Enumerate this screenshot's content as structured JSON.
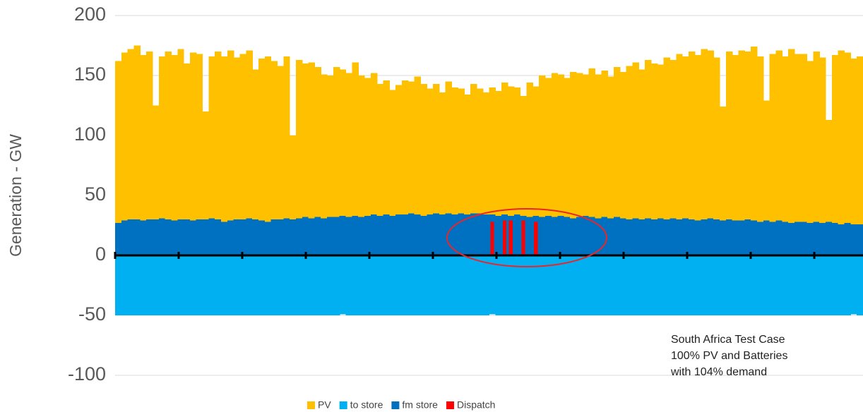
{
  "chart_data": {
    "type": "bar",
    "stacked": true,
    "y_label": "Generation - GW",
    "annotation": [
      "South Africa Test Case",
      "100% PV and Batteries",
      "with 104% demand"
    ],
    "categories": [
      null,
      null,
      null,
      null,
      null,
      null,
      null,
      null,
      null,
      null,
      null,
      null,
      null,
      null,
      null,
      null,
      null,
      null,
      null,
      null,
      null,
      null,
      null,
      null,
      null,
      null,
      null,
      null,
      null,
      null,
      null,
      null,
      null,
      null,
      null,
      null,
      null,
      null,
      null,
      null,
      null,
      null,
      null,
      null,
      null,
      null,
      null,
      null,
      null,
      null,
      null,
      null,
      null,
      null,
      null,
      null,
      null,
      null,
      null,
      null,
      null,
      null,
      null,
      null,
      null,
      null,
      null,
      null,
      null,
      null,
      null,
      null,
      null,
      null,
      null,
      null,
      null,
      null,
      null,
      null,
      null,
      null,
      null,
      null,
      null,
      null,
      null,
      null,
      null,
      null,
      null,
      null,
      null,
      null,
      null,
      null,
      null,
      null,
      null,
      null,
      null,
      null,
      null,
      null,
      null,
      null,
      null,
      null,
      null,
      null,
      null,
      null,
      null,
      null,
      null,
      null,
      null,
      null,
      null,
      null
    ],
    "series": [
      {
        "name": "PV",
        "color": "#FFC000",
        "values": [
          135,
          140,
          142,
          145,
          138,
          140,
          95,
          135,
          140,
          138,
          142,
          130,
          140,
          138,
          90,
          135,
          140,
          138,
          142,
          135,
          138,
          140,
          125,
          135,
          138,
          132,
          128,
          135,
          70,
          132,
          128,
          130,
          125,
          120,
          118,
          125,
          122,
          120,
          128,
          118,
          115,
          118,
          110,
          112,
          105,
          108,
          112,
          110,
          115,
          110,
          105,
          108,
          102,
          110,
          106,
          104,
          100,
          108,
          104,
          102,
          106,
          104,
          110,
          108,
          106,
          100,
          112,
          108,
          118,
          115,
          120,
          118,
          116,
          122,
          120,
          118,
          124,
          120,
          122,
          118,
          125,
          122,
          128,
          130,
          125,
          132,
          130,
          128,
          135,
          132,
          138,
          135,
          140,
          138,
          142,
          140,
          135,
          95,
          140,
          138,
          142,
          140,
          145,
          138,
          100,
          140,
          142,
          138,
          145,
          140,
          140,
          135,
          142,
          138,
          85,
          140,
          145,
          142,
          138,
          140
        ]
      },
      {
        "name": "to store",
        "color": "#00B0F0",
        "values": [
          -50,
          -50,
          -50,
          -50,
          -50,
          -50,
          -50,
          -50,
          -50,
          -50,
          -50,
          -50,
          -50,
          -50,
          -50,
          -50,
          -50,
          -50,
          -50,
          -50,
          -50,
          -50,
          -50,
          -50,
          -50,
          -50,
          -50,
          -50,
          -50,
          -50,
          -50,
          -50,
          -50,
          -50,
          -50,
          -50,
          -49,
          -50,
          -50,
          -50,
          -50,
          -50,
          -50,
          -50,
          -50,
          -50,
          -50,
          -50,
          -50,
          -50,
          -50,
          -50,
          -50,
          -50,
          -50,
          -50,
          -50,
          -50,
          -50,
          -50,
          -49,
          -50,
          -50,
          -50,
          -50,
          -50,
          -50,
          -50,
          -50,
          -50,
          -50,
          -50,
          -50,
          -50,
          -50,
          -50,
          -50,
          -50,
          -50,
          -50,
          -50,
          -50,
          -50,
          -50,
          -50,
          -50,
          -50,
          -50,
          -50,
          -50,
          -50,
          -50,
          -50,
          -50,
          -50,
          -50,
          -50,
          -50,
          -50,
          -50,
          -50,
          -50,
          -50,
          -50,
          -50,
          -50,
          -50,
          -50,
          -50,
          -50,
          -50,
          -50,
          -50,
          -50,
          -50,
          -50,
          -50,
          -50,
          -49,
          -50
        ]
      },
      {
        "name": "fm store",
        "color": "#0070C0",
        "values": [
          27,
          29,
          30,
          30,
          29,
          30,
          30,
          31,
          30,
          29,
          30,
          30,
          29,
          30,
          30,
          31,
          30,
          28,
          29,
          30,
          30,
          31,
          30,
          29,
          28,
          30,
          30,
          31,
          30,
          31,
          32,
          31,
          32,
          31,
          32,
          32,
          33,
          32,
          33,
          32,
          33,
          34,
          33,
          34,
          33,
          34,
          34,
          35,
          34,
          33,
          34,
          35,
          34,
          35,
          34,
          35,
          34,
          35,
          35,
          34,
          34,
          33,
          34,
          33,
          34,
          33,
          32,
          33,
          32,
          33,
          32,
          33,
          32,
          31,
          32,
          33,
          32,
          31,
          32,
          31,
          32,
          31,
          30,
          31,
          30,
          31,
          30,
          31,
          30,
          31,
          30,
          31,
          30,
          29,
          30,
          31,
          30,
          29,
          30,
          29,
          29,
          30,
          29,
          28,
          29,
          28,
          29,
          28,
          27,
          28,
          28,
          27,
          28,
          27,
          28,
          27,
          26,
          27,
          26,
          26
        ]
      },
      {
        "name": "Dispatch",
        "color": "#FF0000",
        "values": [
          0,
          0,
          0,
          0,
          0,
          0,
          0,
          0,
          0,
          0,
          0,
          0,
          0,
          0,
          0,
          0,
          0,
          0,
          0,
          0,
          0,
          0,
          0,
          0,
          0,
          0,
          0,
          0,
          0,
          0,
          0,
          0,
          0,
          0,
          0,
          0,
          0,
          0,
          0,
          0,
          0,
          0,
          0,
          0,
          0,
          0,
          0,
          0,
          0,
          0,
          0,
          0,
          0,
          0,
          0,
          0,
          0,
          0,
          0,
          0,
          28,
          0,
          29,
          29,
          0,
          29,
          0,
          28,
          0,
          0,
          0,
          0,
          0,
          0,
          0,
          0,
          0,
          0,
          0,
          0,
          0,
          0,
          0,
          0,
          0,
          0,
          0,
          0,
          0,
          0,
          0,
          0,
          0,
          0,
          0,
          0,
          0,
          0,
          0,
          0,
          0,
          0,
          0,
          0,
          0,
          0,
          0,
          0,
          0,
          0,
          0,
          0,
          0,
          0,
          0,
          0,
          0,
          0,
          0,
          0
        ]
      }
    ],
    "ylim": [
      -100,
      200
    ],
    "yticks": [
      -100,
      -50,
      0,
      50,
      100,
      150,
      200
    ],
    "grid": true,
    "legend": "bottom"
  }
}
